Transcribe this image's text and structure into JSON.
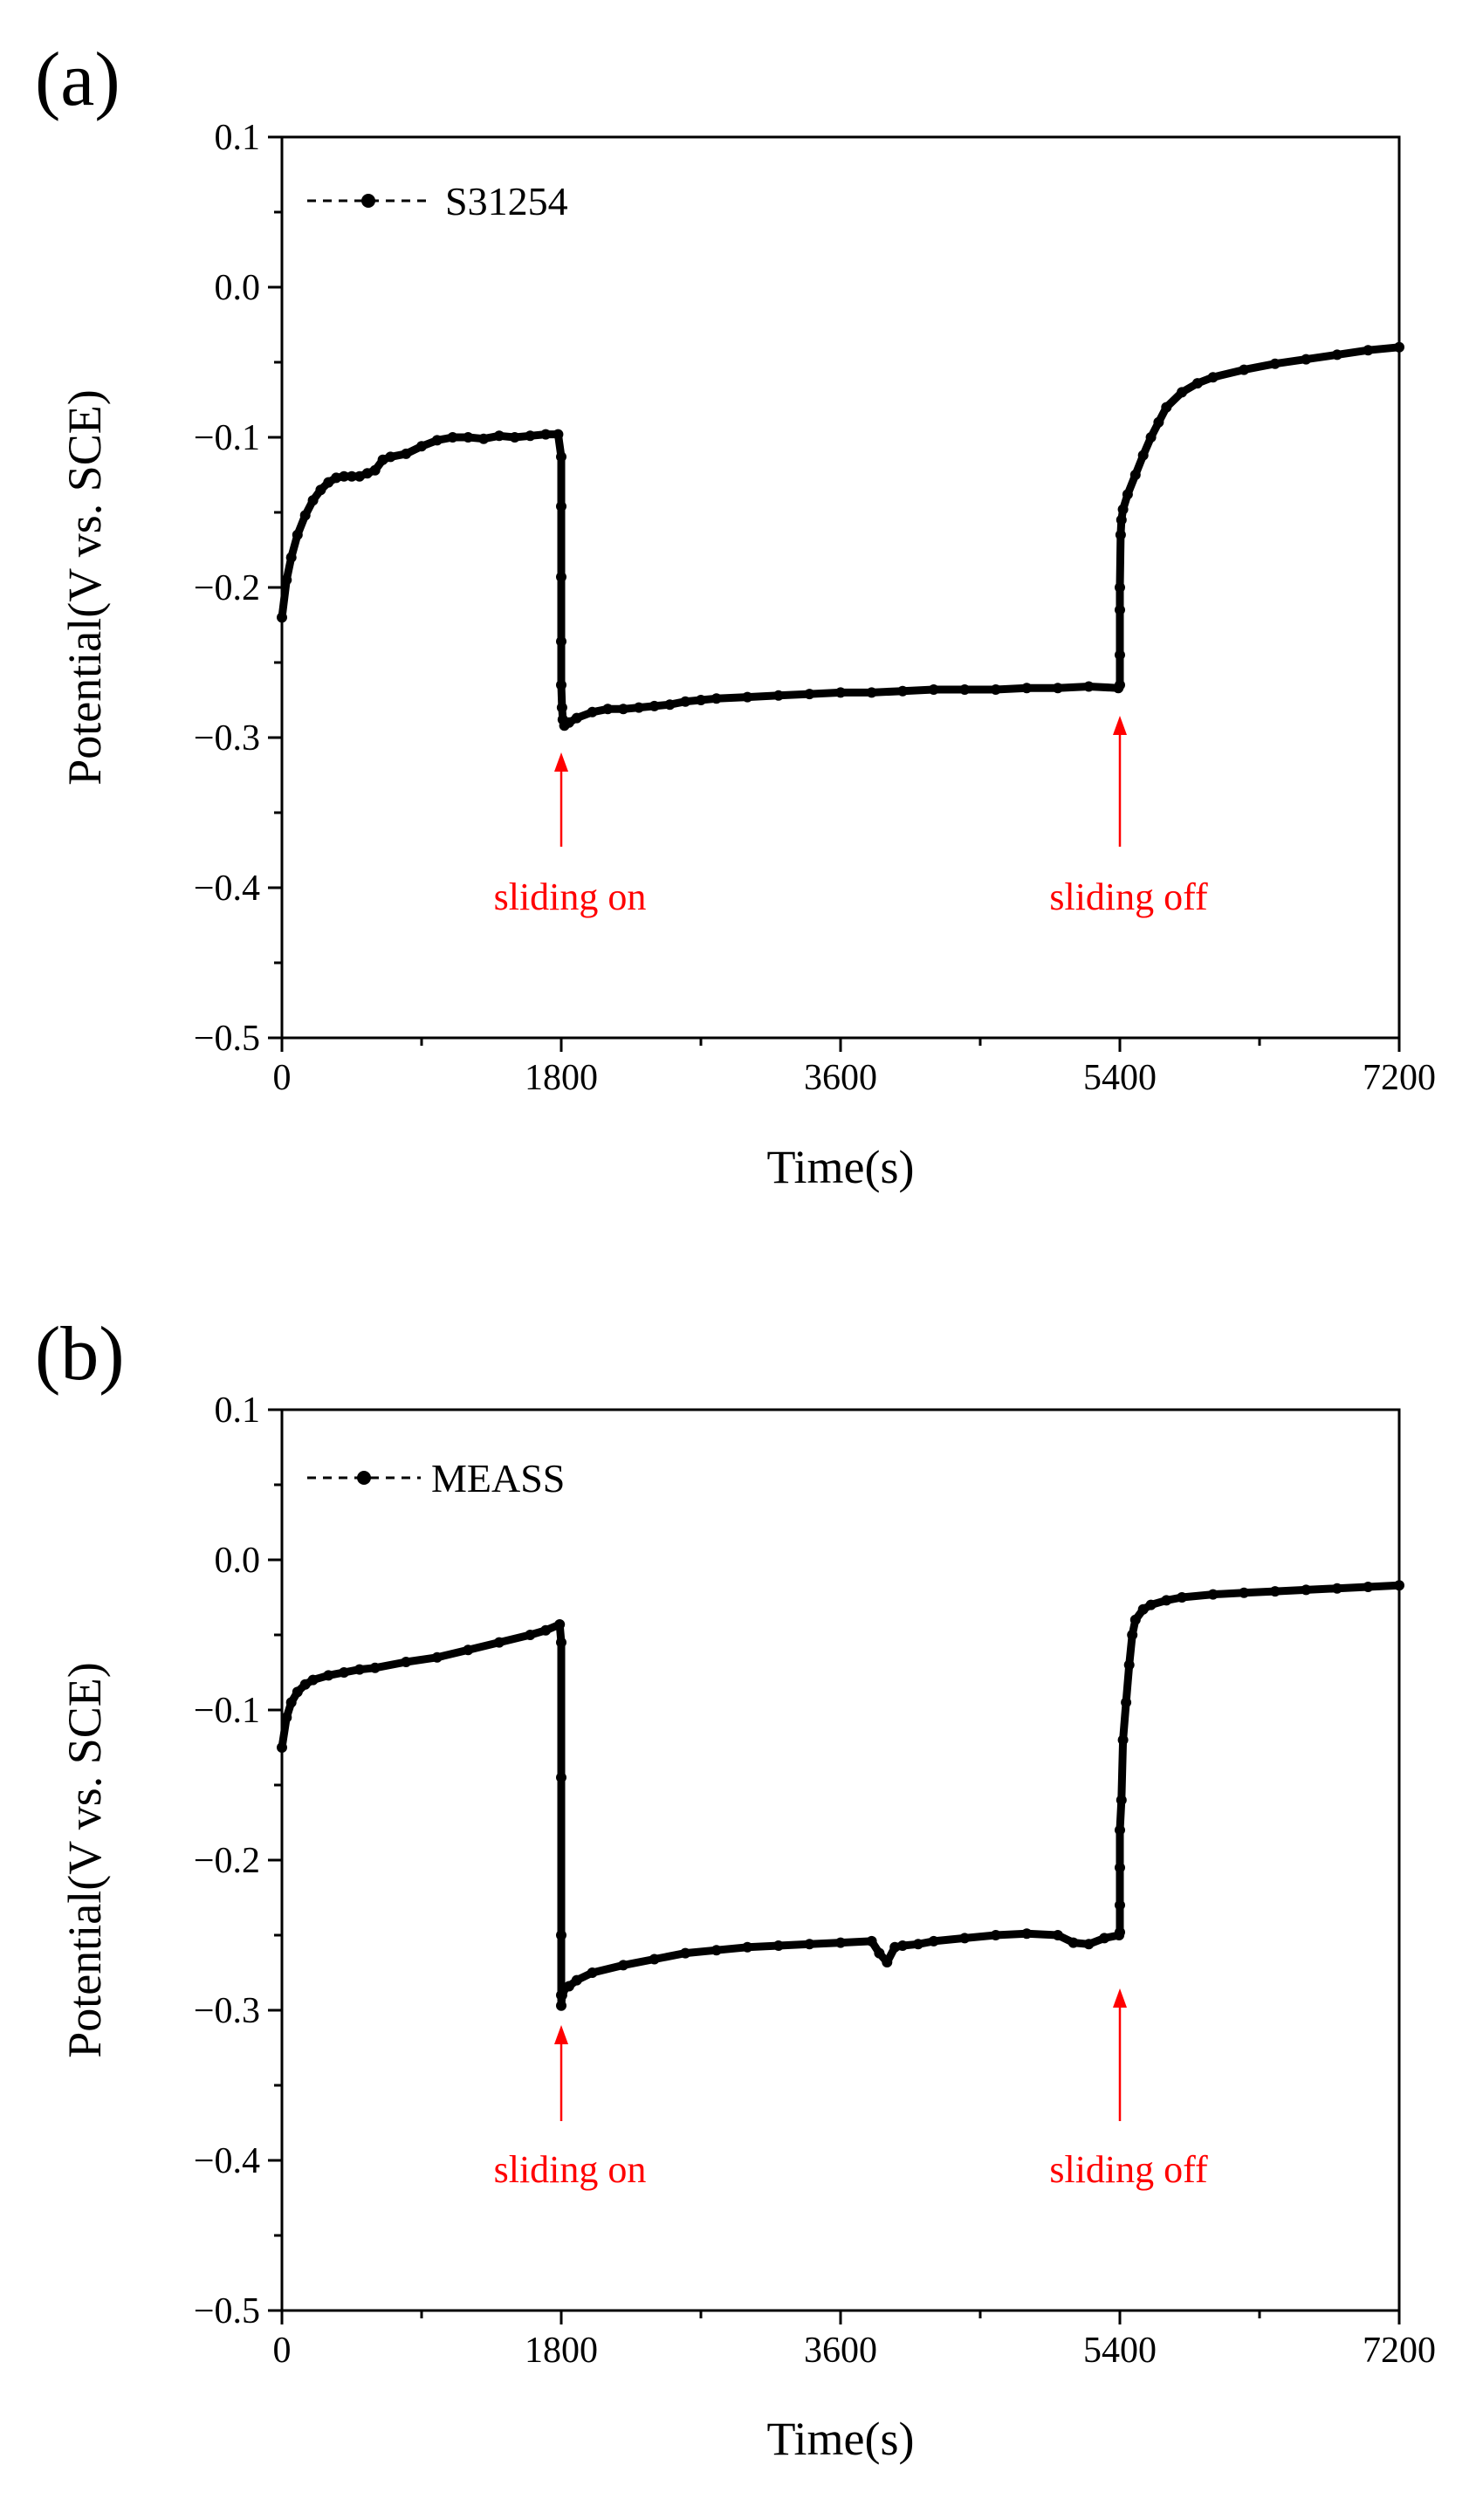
{
  "chart_data": [
    {
      "panel_label": "(a)",
      "type": "line",
      "xlabel": "Time(s)",
      "ylabel": "Potential(V vs. SCE)",
      "xlim": [
        0,
        7200
      ],
      "ylim": [
        -0.5,
        0.1
      ],
      "x_ticks": [
        "0",
        "1800",
        "3600",
        "5400",
        "7200"
      ],
      "y_ticks": [
        "0.1",
        "0.0",
        "−0.1",
        "−0.2",
        "−0.3",
        "−0.4",
        "−0.5"
      ],
      "grid": false,
      "legend": {
        "position": "top-left",
        "entries": [
          "S31254"
        ]
      },
      "line_color": "#000000",
      "annotation_color": "#ff0000",
      "annotations": [
        {
          "text": "sliding on",
          "x": 1800
        },
        {
          "text": "sliding off",
          "x": 5400
        }
      ],
      "series": [
        {
          "name": "S31254",
          "x": [
            0,
            30,
            60,
            100,
            150,
            200,
            250,
            300,
            350,
            400,
            450,
            500,
            550,
            600,
            650,
            700,
            800,
            900,
            1000,
            1100,
            1200,
            1300,
            1400,
            1500,
            1600,
            1700,
            1780,
            1800,
            1800,
            1800,
            1800,
            1800,
            1805,
            1810,
            1820,
            1850,
            1900,
            2000,
            2100,
            2200,
            2300,
            2400,
            2500,
            2600,
            2700,
            2800,
            3000,
            3200,
            3400,
            3600,
            3800,
            4000,
            4200,
            4400,
            4600,
            4800,
            5000,
            5200,
            5390,
            5400,
            5400,
            5400,
            5400,
            5405,
            5410,
            5420,
            5450,
            5500,
            5550,
            5600,
            5650,
            5700,
            5800,
            5900,
            6000,
            6200,
            6400,
            6600,
            6800,
            7000,
            7200
          ],
          "y": [
            -0.22,
            -0.195,
            -0.18,
            -0.165,
            -0.152,
            -0.142,
            -0.135,
            -0.13,
            -0.127,
            -0.126,
            -0.126,
            -0.126,
            -0.124,
            -0.122,
            -0.115,
            -0.113,
            -0.111,
            -0.106,
            -0.102,
            -0.1,
            -0.1,
            -0.101,
            -0.099,
            -0.1,
            -0.099,
            -0.098,
            -0.098,
            -0.113,
            -0.146,
            -0.193,
            -0.236,
            -0.265,
            -0.28,
            -0.288,
            -0.292,
            -0.29,
            -0.287,
            -0.283,
            -0.281,
            -0.281,
            -0.28,
            -0.279,
            -0.278,
            -0.276,
            -0.275,
            -0.274,
            -0.273,
            -0.272,
            -0.271,
            -0.27,
            -0.27,
            -0.269,
            -0.268,
            -0.268,
            -0.268,
            -0.267,
            -0.267,
            -0.266,
            -0.267,
            -0.265,
            -0.245,
            -0.215,
            -0.2,
            -0.165,
            -0.155,
            -0.148,
            -0.138,
            -0.125,
            -0.112,
            -0.1,
            -0.09,
            -0.08,
            -0.07,
            -0.064,
            -0.06,
            -0.055,
            -0.051,
            -0.048,
            -0.045,
            -0.042,
            -0.04
          ]
        }
      ]
    },
    {
      "panel_label": "(b)",
      "type": "line",
      "xlabel": "Time(s)",
      "ylabel": "Potential(V vs. SCE)",
      "xlim": [
        0,
        7200
      ],
      "ylim": [
        -0.5,
        0.1
      ],
      "x_ticks": [
        "0",
        "1800",
        "3600",
        "5400",
        "7200"
      ],
      "y_ticks": [
        "0.1",
        "0.0",
        "−0.1",
        "−0.2",
        "−0.3",
        "−0.4",
        "−0.5"
      ],
      "grid": false,
      "legend": {
        "position": "top-left",
        "entries": [
          "MEASS"
        ]
      },
      "line_color": "#000000",
      "annotation_color": "#ff0000",
      "annotations": [
        {
          "text": "sliding on",
          "x": 1800
        },
        {
          "text": "sliding off",
          "x": 5400
        }
      ],
      "series": [
        {
          "name": "MEASS",
          "x": [
            0,
            30,
            60,
            100,
            150,
            200,
            300,
            400,
            500,
            600,
            800,
            1000,
            1200,
            1400,
            1600,
            1700,
            1790,
            1800,
            1800,
            1800,
            1800,
            1800,
            1805,
            1810,
            1850,
            1900,
            2000,
            2200,
            2400,
            2600,
            2800,
            3000,
            3200,
            3400,
            3600,
            3800,
            3850,
            3900,
            3950,
            4000,
            4100,
            4200,
            4400,
            4600,
            4800,
            5000,
            5100,
            5200,
            5300,
            5395,
            5400,
            5400,
            5400,
            5400,
            5410,
            5420,
            5440,
            5460,
            5480,
            5500,
            5550,
            5600,
            5700,
            5800,
            6000,
            6200,
            6400,
            6600,
            6800,
            7000,
            7200
          ],
          "y": [
            -0.125,
            -0.105,
            -0.095,
            -0.088,
            -0.083,
            -0.08,
            -0.077,
            -0.075,
            -0.073,
            -0.072,
            -0.068,
            -0.065,
            -0.06,
            -0.055,
            -0.05,
            -0.047,
            -0.043,
            -0.055,
            -0.145,
            -0.25,
            -0.29,
            -0.297,
            -0.29,
            -0.287,
            -0.284,
            -0.28,
            -0.275,
            -0.27,
            -0.266,
            -0.262,
            -0.26,
            -0.258,
            -0.257,
            -0.256,
            -0.255,
            -0.254,
            -0.262,
            -0.268,
            -0.258,
            -0.257,
            -0.256,
            -0.254,
            -0.252,
            -0.25,
            -0.249,
            -0.25,
            -0.255,
            -0.256,
            -0.252,
            -0.25,
            -0.248,
            -0.23,
            -0.205,
            -0.18,
            -0.16,
            -0.12,
            -0.095,
            -0.07,
            -0.05,
            -0.04,
            -0.033,
            -0.03,
            -0.027,
            -0.025,
            -0.023,
            -0.022,
            -0.021,
            -0.02,
            -0.019,
            -0.018,
            -0.017
          ]
        }
      ]
    }
  ]
}
